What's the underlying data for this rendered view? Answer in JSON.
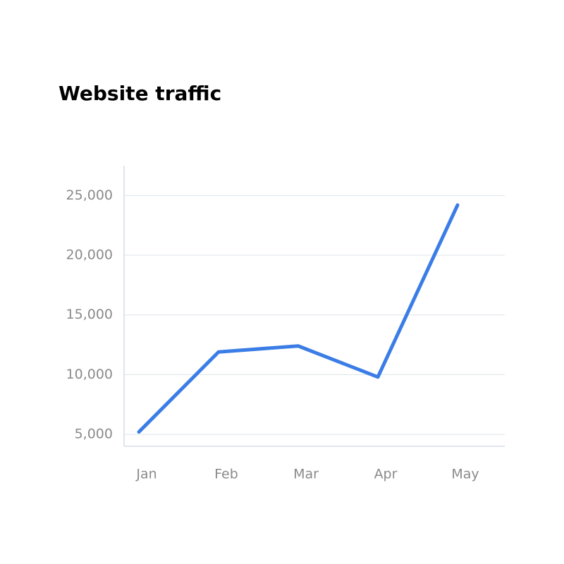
{
  "chart_data": {
    "type": "line",
    "title": "Website traffic",
    "categories": [
      "Jan",
      "Feb",
      "Mar",
      "Apr",
      "May"
    ],
    "values": [
      5200,
      11900,
      12400,
      9800,
      24200
    ],
    "color": "#3b7de6",
    "ylim": [
      4000,
      27500
    ],
    "yticks": [
      {
        "value": 5000,
        "label": "5,000"
      },
      {
        "value": 10000,
        "label": "10,000"
      },
      {
        "value": 15000,
        "label": "15,000"
      },
      {
        "value": 20000,
        "label": "20,000"
      },
      {
        "value": 25000,
        "label": "25,000"
      }
    ],
    "grid": true
  }
}
